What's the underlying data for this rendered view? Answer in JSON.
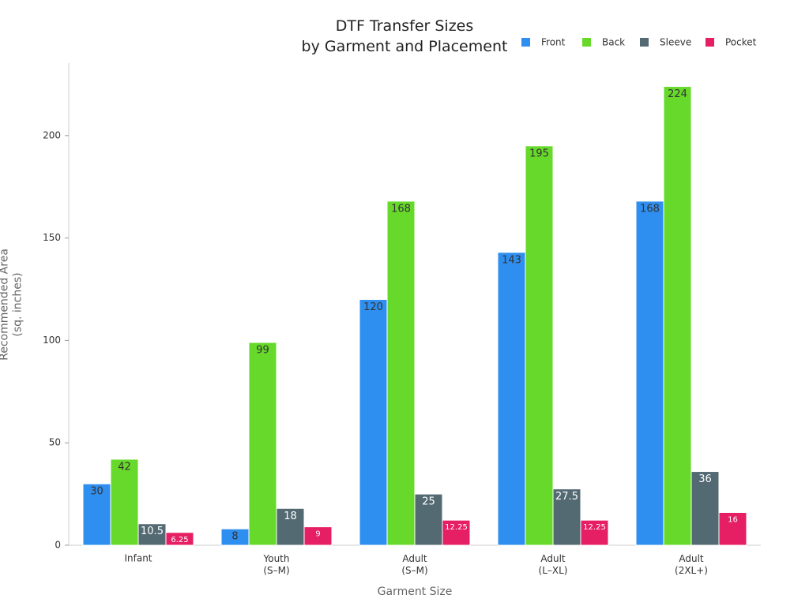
{
  "chart_data": {
    "type": "bar",
    "title": "DTF Transfer Sizes\nby Garment and Placement",
    "x_label": "Garment Size",
    "y_label": "Recommended Area\n(sq. inches)",
    "categories": [
      "Infant",
      "Youth\n(S–M)",
      "Adult\n(S–M)",
      "Adult\n(L–XL)",
      "Adult\n(2XL+)"
    ],
    "series": [
      {
        "name": "Front",
        "color": "#2f8ff0",
        "values": [
          30,
          8,
          120,
          143,
          168
        ]
      },
      {
        "name": "Back",
        "color": "#66d92a",
        "values": [
          42,
          99,
          168,
          195,
          224
        ]
      },
      {
        "name": "Sleeve",
        "color": "#546a73",
        "values": [
          10.5,
          18,
          25,
          27.5,
          36
        ]
      },
      {
        "name": "Pocket",
        "color": "#e61e63",
        "values": [
          6.25,
          9,
          12.25,
          12.25,
          16
        ]
      }
    ],
    "ylim": [
      0,
      235
    ],
    "yticks": [
      0,
      50,
      100,
      150,
      200
    ],
    "grid": false,
    "legend": "top-right"
  }
}
